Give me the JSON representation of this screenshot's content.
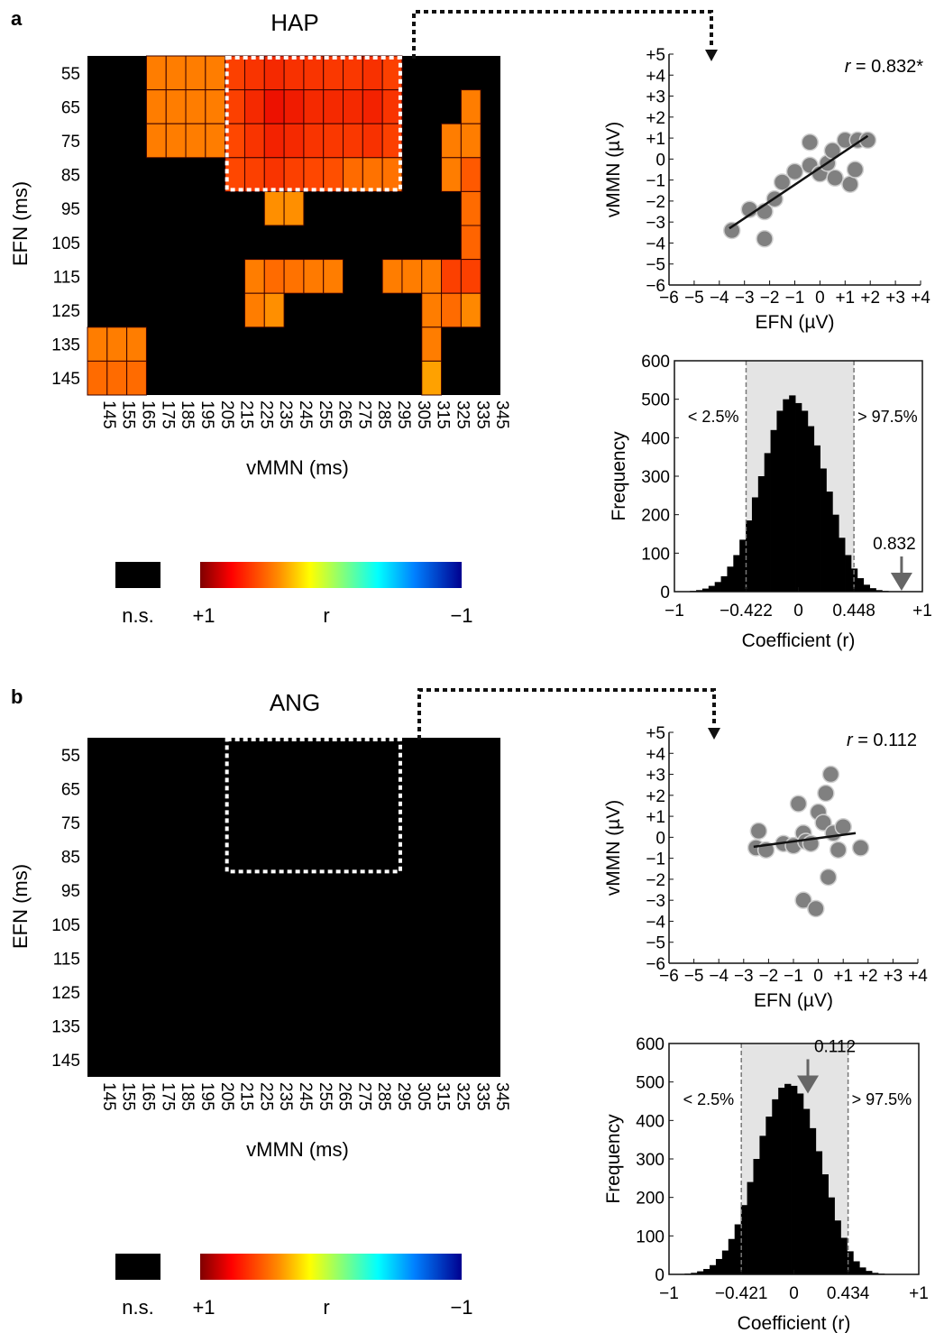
{
  "panels": [
    {
      "label": "a",
      "heatmap": {
        "title": "HAP",
        "xlabel": "vMMN (ms)",
        "ylabel": "EFN (ms)",
        "legend": {
          "ns_label": "n.s.",
          "plus_label": "+1",
          "r_label": "r",
          "minus_label": "−1"
        }
      },
      "scatter": {
        "annotation_italic": "r",
        "annotation_value": " = 0.832*"
      },
      "histogram": {
        "left_label": "< 2.5%",
        "right_label": "> 97.5%",
        "arrow_label": "0.832"
      }
    },
    {
      "label": "b",
      "heatmap": {
        "title": "ANG",
        "xlabel": "vMMN (ms)",
        "ylabel": "EFN (ms)",
        "legend": {
          "ns_label": "n.s.",
          "plus_label": "+1",
          "r_label": "r",
          "minus_label": "−1"
        }
      },
      "scatter": {
        "annotation_italic": "r",
        "annotation_value": " = 0.112"
      },
      "histogram": {
        "left_label": "< 2.5%",
        "right_label": "> 97.5%",
        "arrow_label": "0.112"
      }
    }
  ],
  "chart_data": [
    {
      "type": "heatmap",
      "title": "HAP",
      "xlabel": "vMMN (ms)",
      "ylabel": "EFN (ms)",
      "x_categories": [
        "145",
        "155",
        "165",
        "175",
        "185",
        "195",
        "205",
        "215",
        "225",
        "235",
        "245",
        "255",
        "265",
        "275",
        "285",
        "295",
        "305",
        "315",
        "325",
        "335",
        "345"
      ],
      "y_categories": [
        "55",
        "65",
        "75",
        "85",
        "95",
        "105",
        "115",
        "125",
        "135",
        "145"
      ],
      "colorscale": {
        "max_label": "+1",
        "min_label": "−1",
        "label": "r",
        "ns_label": "n.s.",
        "ns_color": "#000000"
      },
      "cells": [
        {
          "x": "175",
          "y": "55",
          "r": 0.55
        },
        {
          "x": "185",
          "y": "55",
          "r": 0.55
        },
        {
          "x": "195",
          "y": "55",
          "r": 0.55
        },
        {
          "x": "205",
          "y": "55",
          "r": 0.55
        },
        {
          "x": "215",
          "y": "55",
          "r": 0.72
        },
        {
          "x": "225",
          "y": "55",
          "r": 0.75
        },
        {
          "x": "235",
          "y": "55",
          "r": 0.78
        },
        {
          "x": "245",
          "y": "55",
          "r": 0.76
        },
        {
          "x": "255",
          "y": "55",
          "r": 0.75
        },
        {
          "x": "265",
          "y": "55",
          "r": 0.74
        },
        {
          "x": "275",
          "y": "55",
          "r": 0.74
        },
        {
          "x": "285",
          "y": "55",
          "r": 0.76
        },
        {
          "x": "295",
          "y": "55",
          "r": 0.72
        },
        {
          "x": "175",
          "y": "65",
          "r": 0.55
        },
        {
          "x": "185",
          "y": "65",
          "r": 0.55
        },
        {
          "x": "195",
          "y": "65",
          "r": 0.55
        },
        {
          "x": "205",
          "y": "65",
          "r": 0.55
        },
        {
          "x": "215",
          "y": "65",
          "r": 0.72
        },
        {
          "x": "225",
          "y": "65",
          "r": 0.78
        },
        {
          "x": "235",
          "y": "65",
          "r": 0.85
        },
        {
          "x": "245",
          "y": "65",
          "r": 0.82
        },
        {
          "x": "255",
          "y": "65",
          "r": 0.78
        },
        {
          "x": "265",
          "y": "65",
          "r": 0.78
        },
        {
          "x": "275",
          "y": "65",
          "r": 0.78
        },
        {
          "x": "285",
          "y": "65",
          "r": 0.8
        },
        {
          "x": "295",
          "y": "65",
          "r": 0.75
        },
        {
          "x": "335",
          "y": "65",
          "r": 0.55
        },
        {
          "x": "175",
          "y": "75",
          "r": 0.55
        },
        {
          "x": "185",
          "y": "75",
          "r": 0.55
        },
        {
          "x": "195",
          "y": "75",
          "r": 0.55
        },
        {
          "x": "205",
          "y": "75",
          "r": 0.55
        },
        {
          "x": "215",
          "y": "75",
          "r": 0.7
        },
        {
          "x": "225",
          "y": "75",
          "r": 0.75
        },
        {
          "x": "235",
          "y": "75",
          "r": 0.8
        },
        {
          "x": "245",
          "y": "75",
          "r": 0.78
        },
        {
          "x": "255",
          "y": "75",
          "r": 0.75
        },
        {
          "x": "265",
          "y": "75",
          "r": 0.74
        },
        {
          "x": "275",
          "y": "75",
          "r": 0.74
        },
        {
          "x": "285",
          "y": "75",
          "r": 0.76
        },
        {
          "x": "295",
          "y": "75",
          "r": 0.72
        },
        {
          "x": "325",
          "y": "75",
          "r": 0.55
        },
        {
          "x": "335",
          "y": "75",
          "r": 0.55
        },
        {
          "x": "215",
          "y": "85",
          "r": 0.7
        },
        {
          "x": "225",
          "y": "85",
          "r": 0.72
        },
        {
          "x": "235",
          "y": "85",
          "r": 0.75
        },
        {
          "x": "245",
          "y": "85",
          "r": 0.72
        },
        {
          "x": "255",
          "y": "85",
          "r": 0.7
        },
        {
          "x": "265",
          "y": "85",
          "r": 0.68
        },
        {
          "x": "275",
          "y": "85",
          "r": 0.6
        },
        {
          "x": "285",
          "y": "85",
          "r": 0.58
        },
        {
          "x": "295",
          "y": "85",
          "r": 0.58
        },
        {
          "x": "325",
          "y": "85",
          "r": 0.55
        },
        {
          "x": "335",
          "y": "85",
          "r": 0.65
        },
        {
          "x": "235",
          "y": "95",
          "r": 0.5
        },
        {
          "x": "245",
          "y": "95",
          "r": 0.5
        },
        {
          "x": "335",
          "y": "95",
          "r": 0.6
        },
        {
          "x": "335",
          "y": "105",
          "r": 0.62
        },
        {
          "x": "225",
          "y": "115",
          "r": 0.55
        },
        {
          "x": "235",
          "y": "115",
          "r": 0.6
        },
        {
          "x": "245",
          "y": "115",
          "r": 0.58
        },
        {
          "x": "255",
          "y": "115",
          "r": 0.56
        },
        {
          "x": "265",
          "y": "115",
          "r": 0.55
        },
        {
          "x": "295",
          "y": "115",
          "r": 0.55
        },
        {
          "x": "305",
          "y": "115",
          "r": 0.55
        },
        {
          "x": "315",
          "y": "115",
          "r": 0.55
        },
        {
          "x": "325",
          "y": "115",
          "r": 0.72
        },
        {
          "x": "335",
          "y": "115",
          "r": 0.72
        },
        {
          "x": "225",
          "y": "125",
          "r": 0.55
        },
        {
          "x": "235",
          "y": "125",
          "r": 0.5
        },
        {
          "x": "315",
          "y": "125",
          "r": 0.55
        },
        {
          "x": "325",
          "y": "125",
          "r": 0.6
        },
        {
          "x": "335",
          "y": "125",
          "r": 0.52
        },
        {
          "x": "145",
          "y": "135",
          "r": 0.55
        },
        {
          "x": "155",
          "y": "135",
          "r": 0.55
        },
        {
          "x": "165",
          "y": "135",
          "r": 0.55
        },
        {
          "x": "315",
          "y": "135",
          "r": 0.55
        },
        {
          "x": "145",
          "y": "145",
          "r": 0.6
        },
        {
          "x": "155",
          "y": "145",
          "r": 0.6
        },
        {
          "x": "165",
          "y": "145",
          "r": 0.6
        },
        {
          "x": "315",
          "y": "145",
          "r": 0.45
        }
      ],
      "highlight": {
        "x_range": [
          "215",
          "295"
        ],
        "y_range": [
          "55",
          "85"
        ]
      }
    },
    {
      "type": "scatter",
      "xlabel": "EFN (µV)",
      "ylabel": "vMMN (µV)",
      "xlim": [
        -6,
        4
      ],
      "ylim": [
        -6,
        5
      ],
      "x_ticks": [
        "−6",
        "−5",
        "−4",
        "−3",
        "−2",
        "−1",
        "0",
        "+1",
        "+2",
        "+3",
        "+4"
      ],
      "y_ticks": [
        "+5",
        "+4",
        "+3",
        "+2",
        "+1",
        "0",
        "−1",
        "−2",
        "−3",
        "−4",
        "−5",
        "−6"
      ],
      "annotation": "r = 0.832*",
      "points": [
        {
          "x": -3.5,
          "y": -3.4
        },
        {
          "x": -2.8,
          "y": -2.4
        },
        {
          "x": -2.2,
          "y": -2.5
        },
        {
          "x": -2.2,
          "y": -3.8
        },
        {
          "x": -1.8,
          "y": -1.9
        },
        {
          "x": -1.5,
          "y": -1.1
        },
        {
          "x": -1.0,
          "y": -0.6
        },
        {
          "x": -0.4,
          "y": -0.3
        },
        {
          "x": -0.4,
          "y": 0.8
        },
        {
          "x": 0.0,
          "y": -0.7
        },
        {
          "x": 0.3,
          "y": -0.2
        },
        {
          "x": 0.5,
          "y": 0.4
        },
        {
          "x": 0.6,
          "y": -0.9
        },
        {
          "x": 1.0,
          "y": 0.9
        },
        {
          "x": 1.2,
          "y": -1.2
        },
        {
          "x": 1.4,
          "y": -0.5
        },
        {
          "x": 1.5,
          "y": 0.9
        },
        {
          "x": 1.9,
          "y": 0.9
        }
      ],
      "fit_line": {
        "x": [
          -3.6,
          1.9
        ],
        "y": [
          -3.3,
          1.1
        ]
      }
    },
    {
      "type": "bar",
      "xlabel": "Coefficient (r)",
      "ylabel": "Frequency",
      "xlim": [
        -1,
        1
      ],
      "ylim": [
        0,
        600
      ],
      "x_ticks": [
        "−1",
        "−0.422",
        "0",
        "0.448",
        "+1"
      ],
      "y_ticks": [
        "0",
        "100",
        "200",
        "300",
        "400",
        "500",
        "600"
      ],
      "percentile_2_5": -0.422,
      "percentile_97_5": 0.448,
      "observed": 0.832,
      "bin_centers": [
        -0.85,
        -0.8,
        -0.75,
        -0.7,
        -0.65,
        -0.6,
        -0.55,
        -0.5,
        -0.45,
        -0.4,
        -0.35,
        -0.3,
        -0.25,
        -0.2,
        -0.15,
        -0.1,
        -0.05,
        0,
        0.05,
        0.1,
        0.15,
        0.2,
        0.25,
        0.3,
        0.35,
        0.4,
        0.45,
        0.5,
        0.55,
        0.6,
        0.65,
        0.7
      ],
      "values": [
        2,
        4,
        8,
        15,
        25,
        40,
        65,
        95,
        135,
        185,
        245,
        300,
        360,
        420,
        470,
        500,
        510,
        490,
        470,
        430,
        380,
        320,
        260,
        200,
        140,
        95,
        60,
        35,
        18,
        9,
        4,
        2
      ]
    },
    {
      "type": "heatmap",
      "title": "ANG",
      "xlabel": "vMMN (ms)",
      "ylabel": "EFN (ms)",
      "x_categories": [
        "145",
        "155",
        "165",
        "175",
        "185",
        "195",
        "205",
        "215",
        "225",
        "235",
        "245",
        "255",
        "265",
        "275",
        "285",
        "295",
        "305",
        "315",
        "325",
        "335",
        "345"
      ],
      "y_categories": [
        "55",
        "65",
        "75",
        "85",
        "95",
        "105",
        "115",
        "125",
        "135",
        "145"
      ],
      "colorscale": {
        "max_label": "+1",
        "min_label": "−1",
        "label": "r",
        "ns_label": "n.s.",
        "ns_color": "#000000"
      },
      "cells": [],
      "highlight": {
        "x_range": [
          "215",
          "295"
        ],
        "y_range": [
          "55",
          "85"
        ]
      }
    },
    {
      "type": "scatter",
      "xlabel": "EFN (µV)",
      "ylabel": "vMMN (µV)",
      "xlim": [
        -6,
        4
      ],
      "ylim": [
        -6,
        5
      ],
      "x_ticks": [
        "−6",
        "−5",
        "−4",
        "−3",
        "−2",
        "−1",
        "0",
        "+1",
        "+2",
        "+3",
        "+4"
      ],
      "y_ticks": [
        "+5",
        "+4",
        "+3",
        "+2",
        "+1",
        "0",
        "−1",
        "−2",
        "−3",
        "−4",
        "−5",
        "−6"
      ],
      "annotation": "r = 0.112",
      "points": [
        {
          "x": -2.5,
          "y": -0.5
        },
        {
          "x": -2.4,
          "y": 0.3
        },
        {
          "x": -2.1,
          "y": -0.6
        },
        {
          "x": -1.4,
          "y": -0.3
        },
        {
          "x": -1.0,
          "y": -0.4
        },
        {
          "x": -0.8,
          "y": 1.6
        },
        {
          "x": -0.6,
          "y": 0.2
        },
        {
          "x": -0.6,
          "y": -3.0
        },
        {
          "x": -0.5,
          "y": -0.2
        },
        {
          "x": -0.3,
          "y": -0.3
        },
        {
          "x": -0.1,
          "y": -3.4
        },
        {
          "x": 0.0,
          "y": 1.2
        },
        {
          "x": 0.2,
          "y": 0.7
        },
        {
          "x": 0.3,
          "y": 2.1
        },
        {
          "x": 0.4,
          "y": -1.9
        },
        {
          "x": 0.5,
          "y": 3.0
        },
        {
          "x": 0.6,
          "y": 0.2
        },
        {
          "x": 0.8,
          "y": -0.6
        },
        {
          "x": 1.0,
          "y": 0.5
        },
        {
          "x": 1.7,
          "y": -0.5
        }
      ],
      "fit_line": {
        "x": [
          -2.6,
          1.5
        ],
        "y": [
          -0.45,
          0.2
        ]
      }
    },
    {
      "type": "bar",
      "xlabel": "Coefficient (r)",
      "ylabel": "Frequency",
      "xlim": [
        -1,
        1
      ],
      "ylim": [
        0,
        600
      ],
      "x_ticks": [
        "−1",
        "−0.421",
        "0",
        "0.434",
        "+1"
      ],
      "y_ticks": [
        "0",
        "100",
        "200",
        "300",
        "400",
        "500",
        "600"
      ],
      "percentile_2_5": -0.421,
      "percentile_97_5": 0.434,
      "observed": 0.112,
      "bin_centers": [
        -0.85,
        -0.8,
        -0.75,
        -0.7,
        -0.65,
        -0.6,
        -0.55,
        -0.5,
        -0.45,
        -0.4,
        -0.35,
        -0.3,
        -0.25,
        -0.2,
        -0.15,
        -0.1,
        -0.05,
        0,
        0.05,
        0.1,
        0.15,
        0.2,
        0.25,
        0.3,
        0.35,
        0.4,
        0.45,
        0.5,
        0.55,
        0.6,
        0.65,
        0.7
      ],
      "values": [
        2,
        4,
        8,
        14,
        24,
        40,
        62,
        92,
        130,
        180,
        240,
        300,
        360,
        410,
        455,
        485,
        495,
        490,
        470,
        430,
        380,
        320,
        260,
        200,
        140,
        95,
        60,
        34,
        18,
        9,
        4,
        2
      ]
    }
  ]
}
